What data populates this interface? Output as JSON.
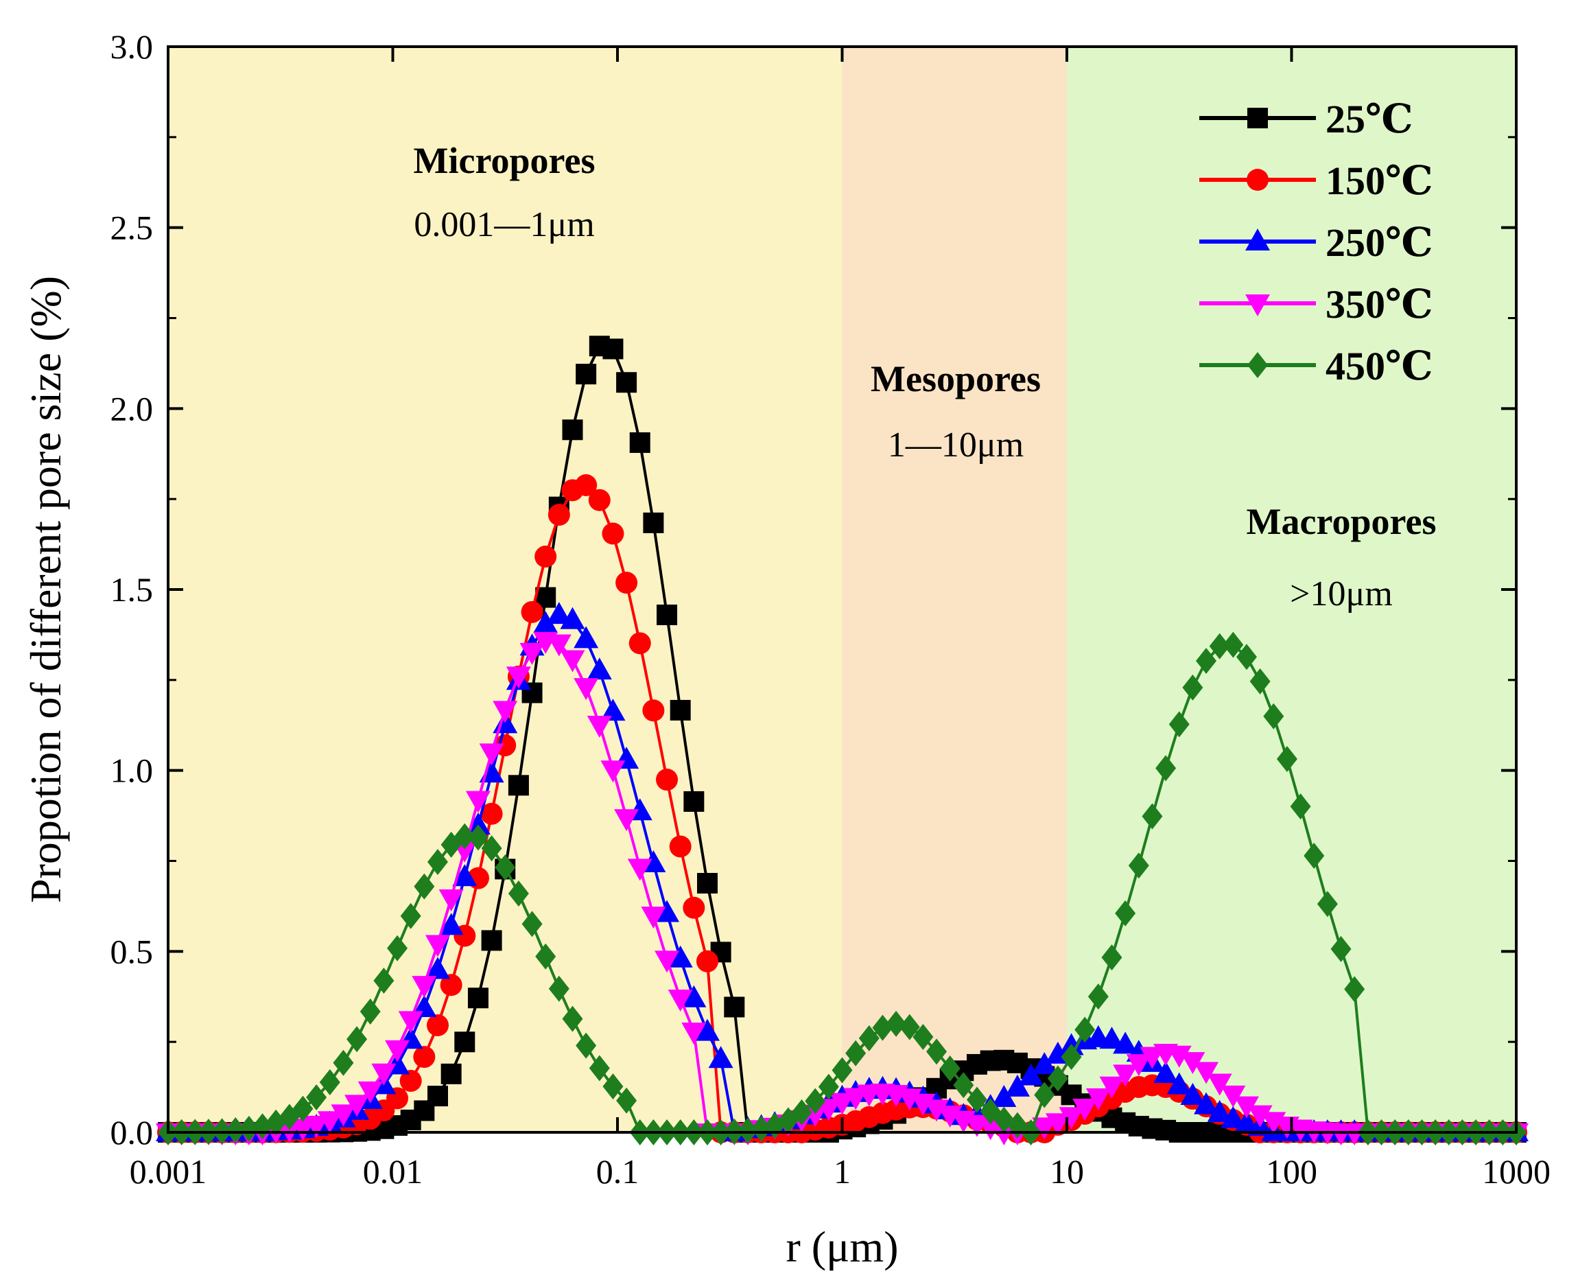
{
  "chart_data": {
    "type": "line",
    "xlabel": "r (μm)",
    "ylabel": "Propotion of different pore size (%)",
    "xscale": "log",
    "xlim": [
      0.001,
      1000
    ],
    "ylim": [
      0,
      3.0
    ],
    "x_ticks": [
      0.001,
      0.01,
      0.1,
      1,
      10,
      100,
      1000
    ],
    "x_tick_labels": [
      "0.001",
      "0.01",
      "0.1",
      "1",
      "10",
      "100",
      "1000"
    ],
    "y_ticks": [
      0,
      0.5,
      1.0,
      1.5,
      2.0,
      2.5,
      3.0
    ],
    "y_tick_labels": [
      "0.0",
      "0.5",
      "1.0",
      "1.5",
      "2.0",
      "2.5",
      "3.0"
    ],
    "grid": false,
    "legend_position": "top-right",
    "regions": [
      {
        "title": "Micropores",
        "range": "0.001—1μm",
        "x0": 0.001,
        "x1": 1,
        "color": "#fbf3c4"
      },
      {
        "title": "Mesopores",
        "range": "1—10μm",
        "x0": 1,
        "x1": 10,
        "color": "#fbe3c6"
      },
      {
        "title": "Macropores",
        "range": ">10μm",
        "x0": 10,
        "x1": 1000,
        "color": "#dff7c8"
      }
    ],
    "series": [
      {
        "name": "25℃",
        "color": "#000000",
        "marker": "square",
        "peaks": [
          {
            "center": 0.088,
            "height": 2.18,
            "sigma": 0.3,
            "range": [
              0.003,
              0.36
            ]
          },
          {
            "center": 5.0,
            "height": 0.2,
            "sigma": 0.28,
            "range": [
              1.0,
              28
            ]
          }
        ]
      },
      {
        "name": "150℃",
        "color": "#ff0000",
        "marker": "circle",
        "peaks": [
          {
            "center": 0.07,
            "height": 1.79,
            "sigma": 0.34,
            "range": [
              0.003,
              0.27
            ]
          },
          {
            "center": 2.2,
            "height": 0.07,
            "sigma": 0.22,
            "range": [
              0.7,
              6
            ]
          },
          {
            "center": 24,
            "height": 0.13,
            "sigma": 0.22,
            "range": [
              8,
              65
            ]
          }
        ]
      },
      {
        "name": "250℃",
        "color": "#0000ff",
        "marker": "triangle-up",
        "peaks": [
          {
            "center": 0.056,
            "height": 1.43,
            "sigma": 0.36,
            "range": [
              0.003,
              0.3
            ]
          },
          {
            "center": 1.5,
            "height": 0.12,
            "sigma": 0.26,
            "range": [
              0.35,
              3.5
            ]
          },
          {
            "center": 14,
            "height": 0.26,
            "sigma": 0.3,
            "range": [
              3.5,
              80
            ]
          }
        ]
      },
      {
        "name": "350℃",
        "color": "#ff00ff",
        "marker": "triangle-down",
        "peaks": [
          {
            "center": 0.05,
            "height": 1.36,
            "sigma": 0.36,
            "range": [
              0.003,
              0.25
            ]
          },
          {
            "center": 1.5,
            "height": 0.11,
            "sigma": 0.24,
            "range": [
              0.4,
              5
            ]
          },
          {
            "center": 28,
            "height": 0.22,
            "sigma": 0.24,
            "range": [
              7,
              160
            ]
          }
        ]
      },
      {
        "name": "450℃",
        "color": "#1e7e1e",
        "marker": "diamond",
        "peaks": [
          {
            "center": 0.022,
            "height": 0.82,
            "sigma": 0.33,
            "range": [
              0.001,
              0.12
            ]
          },
          {
            "center": 1.75,
            "height": 0.3,
            "sigma": 0.23,
            "range": [
              0.3,
              6.5
            ]
          },
          {
            "center": 52,
            "height": 1.35,
            "sigma": 0.36,
            "range": [
              7,
              200
            ]
          }
        ]
      }
    ]
  }
}
